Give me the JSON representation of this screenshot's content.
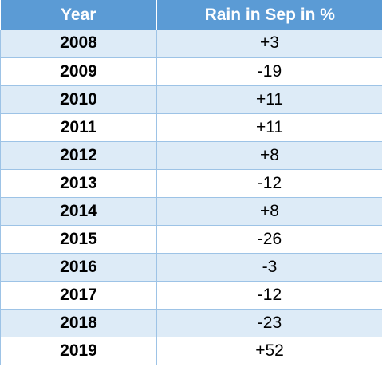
{
  "table": {
    "headers": [
      "Year",
      "Rain in Sep in %"
    ],
    "colors": {
      "header_bg": "#5b9bd5",
      "band_bg": "#ddebf7",
      "border": "#9dc3e6"
    }
  },
  "chart_data": {
    "type": "table",
    "columns": [
      "Year",
      "Rain in Sep in %"
    ],
    "rows": [
      [
        "2008",
        "+3"
      ],
      [
        "2009",
        "-19"
      ],
      [
        "2010",
        "+11"
      ],
      [
        "2011",
        "+11"
      ],
      [
        "2012",
        "+8"
      ],
      [
        "2013",
        "-12"
      ],
      [
        "2014",
        "+8"
      ],
      [
        "2015",
        "-26"
      ],
      [
        "2016",
        "-3"
      ],
      [
        "2017",
        "-12"
      ],
      [
        "2018",
        "-23"
      ],
      [
        "2019",
        "+52"
      ]
    ]
  }
}
